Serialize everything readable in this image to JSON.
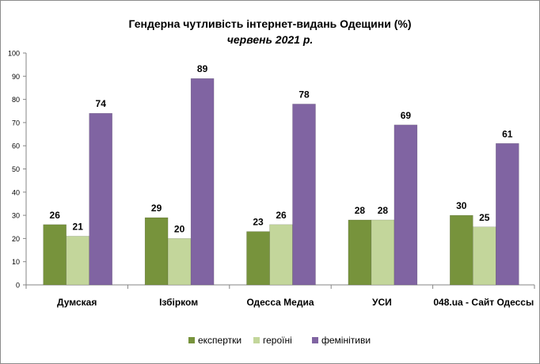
{
  "chart_data": {
    "type": "bar",
    "title": "Гендерна чутливість інтернет-видань Одещини (%)",
    "subtitle": "червень 2021 р.",
    "categories": [
      "Думская",
      "Ізбірком",
      "Одесса Медиа",
      "УСИ",
      "048.ua - Сайт Одессы"
    ],
    "series": [
      {
        "name": "експертки",
        "color": "#77933c",
        "values": [
          26,
          29,
          23,
          28,
          30
        ]
      },
      {
        "name": "героїні",
        "color": "#c3d69b",
        "values": [
          21,
          20,
          26,
          28,
          25
        ]
      },
      {
        "name": "фемінітиви",
        "color": "#8064a2",
        "values": [
          74,
          89,
          78,
          69,
          61
        ]
      }
    ],
    "ylim": [
      0,
      100
    ],
    "yticks": [
      0,
      10,
      20,
      30,
      40,
      50,
      60,
      70,
      80,
      90,
      100
    ],
    "grid": false,
    "legend_position": "bottom",
    "data_labels": true
  }
}
